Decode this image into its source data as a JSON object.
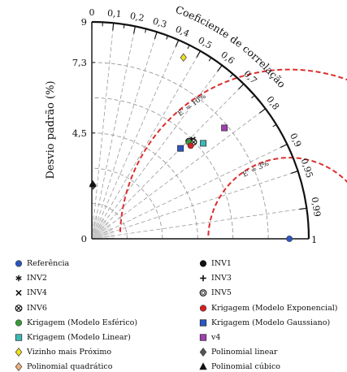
{
  "chart_data": {
    "type": "scatter",
    "subtype": "taylor-diagram",
    "ylabel": "Desvio padrão (%)",
    "arc_label": "Coeficiente de correlação",
    "std_ticks": [
      {
        "value": 0,
        "label": "0"
      },
      {
        "value": 3,
        "label": "4,5"
      },
      {
        "value": 5,
        "label": "7,3"
      },
      {
        "value": 6.15,
        "label": "9"
      }
    ],
    "std_max": 6.15,
    "x_end_label": "1",
    "correlation_ticks": [
      "0",
      "0,1",
      "0,2",
      "0,3",
      "0,4",
      "0,5",
      "0,6",
      "0,7",
      "0,8",
      "0,9",
      "0,95",
      "0,99"
    ],
    "correlation_values": [
      0,
      0.1,
      0.2,
      0.3,
      0.4,
      0.5,
      0.6,
      0.7,
      0.8,
      0.9,
      0.95,
      0.99
    ],
    "rmse_contours": [
      {
        "label": "E' = 3%",
        "radius": 2.3
      },
      {
        "label": "E' = 10%",
        "radius": 4.8
      }
    ],
    "reference_std": 5.6,
    "points": [
      {
        "name": "Referência",
        "marker": "circle",
        "color": "#2b56c2",
        "std": 5.6,
        "corr": 1.0
      },
      {
        "name": "INV1",
        "marker": "circle",
        "color": "#111111",
        "std": 3.95,
        "corr": 0.718
      },
      {
        "name": "INV2",
        "marker": "asterisk",
        "color": "#111111",
        "std": 4.0,
        "corr": 0.72
      },
      {
        "name": "INV3",
        "marker": "plus",
        "color": "#111111",
        "std": 3.97,
        "corr": 0.712
      },
      {
        "name": "INV4",
        "marker": "x",
        "color": "#111111",
        "std": 4.02,
        "corr": 0.713
      },
      {
        "name": "INV5",
        "marker": "circle-dot",
        "color": "#111111",
        "std": 3.9,
        "corr": 0.705
      },
      {
        "name": "INV6",
        "marker": "circle-x",
        "color": "#111111",
        "std": 3.98,
        "corr": 0.725
      },
      {
        "name": "Krigagem (Modelo Esférico)",
        "marker": "circle",
        "color": "#3a9a3a",
        "std": 3.88,
        "corr": 0.709
      },
      {
        "name": "Krigagem (Modelo Exponencial)",
        "marker": "circle",
        "color": "#d42020",
        "std": 3.85,
        "corr": 0.728
      },
      {
        "name": "Krigagem (Modelo Linear)",
        "marker": "square",
        "color": "#3fb8b8",
        "std": 4.16,
        "corr": 0.759
      },
      {
        "name": "Krigagem (Modelo Gaussiano)",
        "marker": "square",
        "color": "#2b56c2",
        "std": 3.59,
        "corr": 0.7
      },
      {
        "name": "Vizinho mais Próximo",
        "marker": "diamond",
        "color": "#f0e020",
        "std": 5.76,
        "corr": 0.451
      },
      {
        "name": "v4",
        "marker": "square",
        "color": "#a040b0",
        "std": 4.9,
        "corr": 0.767
      },
      {
        "name": "Polinomial quadrático",
        "marker": "diamond",
        "color": "#f0b080",
        "std": 1.51,
        "corr": 0.025
      },
      {
        "name": "Polinomial linear",
        "marker": "diamond",
        "color": "#555555",
        "std": 1.53,
        "corr": 0.02
      },
      {
        "name": "Polinomial cúbico",
        "marker": "triangle",
        "color": "#111111",
        "std": 1.55,
        "corr": 0.015
      }
    ]
  },
  "legend": {
    "items": [
      {
        "label": "Referência",
        "marker": "circle",
        "color": "#2b56c2"
      },
      {
        "label": "INV1",
        "marker": "circle",
        "color": "#111111"
      },
      {
        "label": "INV2",
        "marker": "asterisk",
        "color": "#111111"
      },
      {
        "label": "INV3",
        "marker": "plus",
        "color": "#111111"
      },
      {
        "label": "INV4",
        "marker": "x",
        "color": "#111111"
      },
      {
        "label": "INV5",
        "marker": "circle-dot",
        "color": "#111111"
      },
      {
        "label": "INV6",
        "marker": "circle-x",
        "color": "#111111"
      },
      {
        "label": "Krigagem (Modelo Exponencial)",
        "marker": "circle",
        "color": "#d42020"
      },
      {
        "label": "Krigagem (Modelo Esférico)",
        "marker": "circle",
        "color": "#3a9a3a"
      },
      {
        "label": "Krigagem (Modelo Gaussiano)",
        "marker": "square",
        "color": "#2b56c2"
      },
      {
        "label": "Krigagem (Modelo Linear)",
        "marker": "square",
        "color": "#3fb8b8"
      },
      {
        "label": "v4",
        "marker": "square",
        "color": "#a040b0"
      },
      {
        "label": "Vizinho mais Próximo",
        "marker": "diamond",
        "color": "#f0e020"
      },
      {
        "label": "Polinomial linear",
        "marker": "diamond",
        "color": "#555555"
      },
      {
        "label": "Polinomial quadrático",
        "marker": "diamond",
        "color": "#f0b080"
      },
      {
        "label": "Polinomial cúbico",
        "marker": "triangle",
        "color": "#111111"
      }
    ]
  }
}
